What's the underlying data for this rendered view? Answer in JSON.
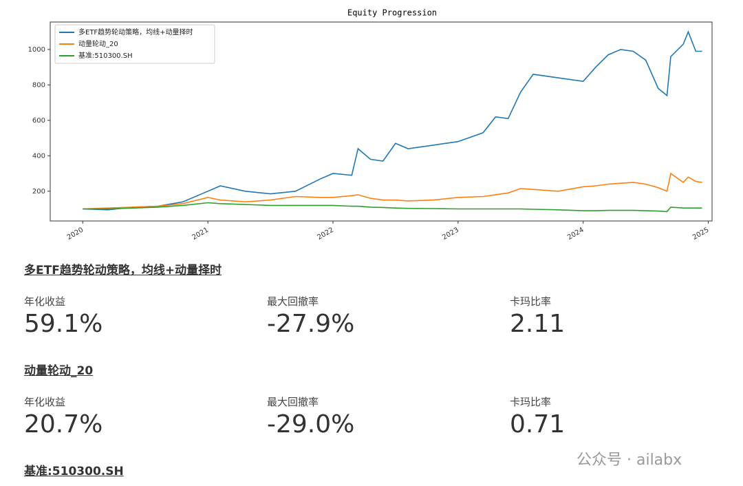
{
  "chart_data": {
    "type": "line",
    "title": "Equity Progression",
    "x": [
      2020.0,
      2020.2,
      2020.4,
      2020.6,
      2020.8,
      2021.0,
      2021.1,
      2021.3,
      2021.5,
      2021.7,
      2021.9,
      2022.0,
      2022.15,
      2022.2,
      2022.3,
      2022.4,
      2022.5,
      2022.6,
      2022.8,
      2023.0,
      2023.2,
      2023.3,
      2023.4,
      2023.5,
      2023.6,
      2023.8,
      2024.0,
      2024.1,
      2024.2,
      2024.3,
      2024.4,
      2024.5,
      2024.6,
      2024.67,
      2024.7,
      2024.8,
      2024.84,
      2024.9,
      2024.95
    ],
    "series": [
      {
        "name": "多ETF趋势轮动策略，均线+动量择时",
        "color": "#1f77b4",
        "values": [
          100,
          95,
          110,
          115,
          140,
          200,
          230,
          200,
          185,
          200,
          270,
          300,
          290,
          440,
          380,
          370,
          470,
          440,
          460,
          480,
          530,
          620,
          610,
          760,
          860,
          840,
          820,
          900,
          970,
          1000,
          990,
          940,
          780,
          740,
          960,
          1030,
          1100,
          990,
          990
        ]
      },
      {
        "name": "动量轮动_20",
        "color": "#ff7f0e",
        "values": [
          100,
          105,
          110,
          115,
          130,
          165,
          150,
          140,
          150,
          170,
          165,
          165,
          175,
          180,
          160,
          150,
          150,
          145,
          150,
          165,
          170,
          180,
          190,
          215,
          210,
          200,
          225,
          230,
          240,
          245,
          250,
          240,
          220,
          200,
          300,
          250,
          280,
          255,
          250
        ]
      },
      {
        "name": "基准:510300.SH",
        "color": "#2ca02c",
        "values": [
          100,
          100,
          105,
          110,
          120,
          135,
          130,
          125,
          120,
          120,
          120,
          120,
          115,
          115,
          110,
          108,
          105,
          103,
          102,
          100,
          100,
          100,
          100,
          100,
          98,
          95,
          90,
          90,
          92,
          92,
          92,
          90,
          88,
          85,
          110,
          105,
          105,
          105,
          105
        ]
      }
    ],
    "xlim": [
      2019.74,
      2025.03
    ],
    "xticks": [
      2020,
      2021,
      2022,
      2023,
      2024,
      2025
    ],
    "ylim": [
      32,
      1155
    ],
    "yticks": [
      200,
      400,
      600,
      800,
      1000
    ],
    "legend": "upper left"
  },
  "sections": [
    {
      "title": "多ETF趋势轮动策略，均线+动量择时",
      "metrics": [
        {
          "label": "年化收益",
          "value": "59.1%"
        },
        {
          "label": "最大回撤率",
          "value": "-27.9%"
        },
        {
          "label": "卡玛比率",
          "value": "2.11"
        }
      ]
    },
    {
      "title": "动量轮动_20",
      "metrics": [
        {
          "label": "年化收益",
          "value": "20.7%"
        },
        {
          "label": "最大回撤率",
          "value": "-29.0%"
        },
        {
          "label": "卡玛比率",
          "value": "0.71"
        }
      ]
    },
    {
      "title": "基准:510300.SH",
      "metrics": []
    }
  ],
  "watermark": "公众号 · ailabx"
}
